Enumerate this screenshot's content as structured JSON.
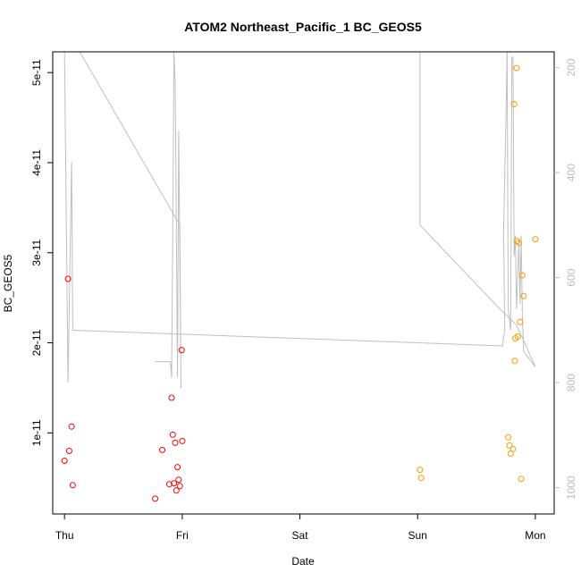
{
  "chart_data": {
    "type": "scatter",
    "title": "ATOM2 Northeast_Pacific_1 BC_GEOS5",
    "xlabel": "Date",
    "ylabel": "BC_GEOS5",
    "x_ticks": [
      "Thu",
      "Fri",
      "Sat",
      "Sun",
      "Mon"
    ],
    "x_unit": "days",
    "xlim": [
      -0.1,
      4.16
    ],
    "y_ticks": [
      {
        "value": 1e-11,
        "label": "1e-11"
      },
      {
        "value": 2e-11,
        "label": "2e-11"
      },
      {
        "value": 3e-11,
        "label": "3e-11"
      },
      {
        "value": 4e-11,
        "label": "4e-11"
      },
      {
        "value": 5e-11,
        "label": "5e-11"
      }
    ],
    "ylim": [
      1e-12,
      5.23e-11
    ],
    "y2_ticks": [
      200,
      400,
      600,
      800,
      1000
    ],
    "y2lim": [
      1050,
      170
    ],
    "y2_reversed": true,
    "grid": false,
    "legend": "none",
    "colors": {
      "series_a": "#ff0000",
      "series_b": "#ff9900",
      "pressure": "#bfbfbf"
    },
    "series": [
      {
        "color": "#ff0000",
        "points": [
          {
            "x": 0.0,
            "y": 6.9e-12
          },
          {
            "x": 0.03,
            "y": 2.71e-11
          },
          {
            "x": 0.04,
            "y": 8e-12
          },
          {
            "x": 0.06,
            "y": 1.07e-11
          },
          {
            "x": 0.07,
            "y": 4.2e-12
          },
          {
            "x": 0.77,
            "y": 2.7e-12
          },
          {
            "x": 0.83,
            "y": 8.1e-12
          },
          {
            "x": 0.89,
            "y": 4.3e-12
          },
          {
            "x": 0.91,
            "y": 1.39e-11
          },
          {
            "x": 0.92,
            "y": 9.8e-12
          },
          {
            "x": 0.93,
            "y": 4.4e-12
          },
          {
            "x": 0.94,
            "y": 8.9e-12
          },
          {
            "x": 0.95,
            "y": 3.6e-12
          },
          {
            "x": 0.96,
            "y": 6.2e-12
          },
          {
            "x": 0.97,
            "y": 4.8e-12
          },
          {
            "x": 0.98,
            "y": 4.1e-12
          },
          {
            "x": 0.995,
            "y": 1.92e-11
          },
          {
            "x": 1.0,
            "y": 9.1e-12
          }
        ]
      },
      {
        "color": "#ff9900",
        "points": [
          {
            "x": 3.02,
            "y": 5.9e-12
          },
          {
            "x": 3.03,
            "y": 5e-12
          },
          {
            "x": 3.77,
            "y": 9.5e-12
          },
          {
            "x": 3.78,
            "y": 8.6e-12
          },
          {
            "x": 3.79,
            "y": 7.7e-12
          },
          {
            "x": 3.81,
            "y": 8.2e-12
          },
          {
            "x": 3.82,
            "y": 4.65e-11
          },
          {
            "x": 3.825,
            "y": 1.8e-11
          },
          {
            "x": 3.83,
            "y": 2.05e-11
          },
          {
            "x": 3.84,
            "y": 5.05e-11
          },
          {
            "x": 3.845,
            "y": 3.13e-11
          },
          {
            "x": 3.85,
            "y": 2.07e-11
          },
          {
            "x": 3.86,
            "y": 3.11e-11
          },
          {
            "x": 3.87,
            "y": 2.23e-11
          },
          {
            "x": 3.88,
            "y": 4.9e-12
          },
          {
            "x": 3.89,
            "y": 2.75e-11
          },
          {
            "x": 3.9,
            "y": 2.52e-11
          },
          {
            "x": 4.0,
            "y": 3.15e-11
          }
        ]
      }
    ],
    "pressure_line": {
      "color": "#bfbfbf",
      "points": [
        {
          "x": 0.0,
          "y": 110
        },
        {
          "x": 0.03,
          "y": 800
        },
        {
          "x": 0.06,
          "y": 380
        },
        {
          "x": 0.07,
          "y": 700
        },
        {
          "x": 3.72,
          "y": 730
        },
        {
          "x": 3.74,
          "y": 700
        },
        {
          "x": 3.73,
          "y": 510
        },
        {
          "x": 3.75,
          "y": 300
        },
        {
          "x": 3.76,
          "y": 160
        },
        {
          "x": 3.77,
          "y": 660
        },
        {
          "x": 3.79,
          "y": 700
        },
        {
          "x": 3.8,
          "y": 180
        },
        {
          "x": 3.81,
          "y": 180
        },
        {
          "x": 3.82,
          "y": 560
        },
        {
          "x": 3.83,
          "y": 520
        },
        {
          "x": 3.84,
          "y": 660
        },
        {
          "x": 3.86,
          "y": 530
        },
        {
          "x": 3.87,
          "y": 650
        },
        {
          "x": 3.88,
          "y": 520
        },
        {
          "x": 3.89,
          "y": 670
        },
        {
          "x": 3.9,
          "y": 740
        },
        {
          "x": 4.0,
          "y": 770
        },
        {
          "x": 3.84,
          "y": 690
        },
        {
          "x": 3.7,
          "y": 660
        },
        {
          "x": 3.02,
          "y": 500
        },
        {
          "x": 3.02,
          "y": 100
        },
        {
          "x": 3.0,
          "y": 100
        },
        {
          "x": 0.16,
          "y": 110
        },
        {
          "x": 0.13,
          "y": 150
        },
        {
          "x": 0.98,
          "y": 500
        },
        {
          "x": 0.99,
          "y": 810
        },
        {
          "x": 0.97,
          "y": 320
        },
        {
          "x": 0.96,
          "y": 790
        },
        {
          "x": 0.94,
          "y": 230
        },
        {
          "x": 0.93,
          "y": 170
        },
        {
          "x": 0.92,
          "y": 500
        },
        {
          "x": 0.91,
          "y": 790
        },
        {
          "x": 0.9,
          "y": 760
        },
        {
          "x": 0.88,
          "y": 760
        },
        {
          "x": 0.85,
          "y": 760
        },
        {
          "x": 0.83,
          "y": 760
        },
        {
          "x": 0.77,
          "y": 760
        }
      ]
    }
  }
}
